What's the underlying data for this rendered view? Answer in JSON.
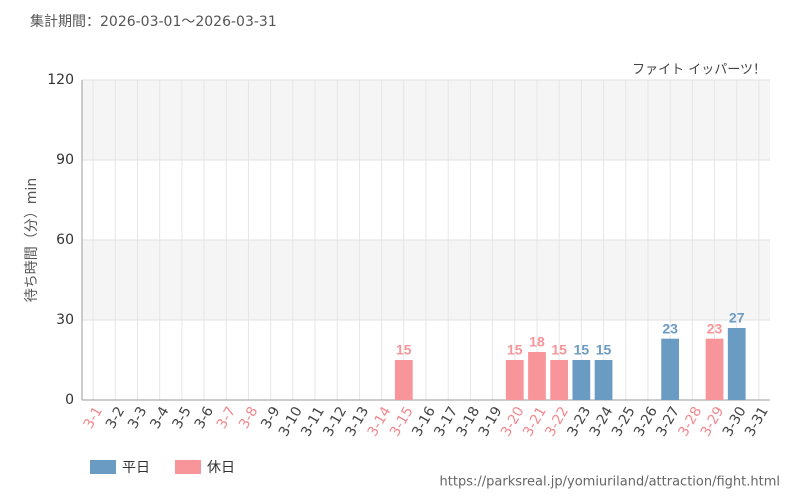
{
  "chart_data": {
    "type": "bar",
    "subtitle": "集計期間：2026-03-01～2026-03-31",
    "annotation": "ファイト イッパーツ！",
    "y_label": "待ち時間（分）min",
    "source": "https://parksreal.jp/yomiuriland/attraction/fight.html",
    "categories": [
      "3-1",
      "3-2",
      "3-3",
      "3-4",
      "3-5",
      "3-6",
      "3-7",
      "3-8",
      "3-9",
      "3-10",
      "3-11",
      "3-12",
      "3-13",
      "3-14",
      "3-15",
      "3-16",
      "3-17",
      "3-18",
      "3-19",
      "3-20",
      "3-21",
      "3-22",
      "3-23",
      "3-24",
      "3-25",
      "3-26",
      "3-27",
      "3-28",
      "3-29",
      "3-30",
      "3-31"
    ],
    "category_label_colors": [
      "#f08a8f",
      "#444",
      "#444",
      "#444",
      "#444",
      "#444",
      "#f08a8f",
      "#f08a8f",
      "#444",
      "#444",
      "#444",
      "#444",
      "#444",
      "#f08a8f",
      "#f08a8f",
      "#444",
      "#444",
      "#444",
      "#444",
      "#f08a8f",
      "#f08a8f",
      "#f08a8f",
      "#444",
      "#444",
      "#444",
      "#444",
      "#444",
      "#f08a8f",
      "#f08a8f",
      "#444",
      "#444"
    ],
    "series": [
      {
        "name": "平日",
        "color": "#6a9bc3",
        "values": [
          null,
          null,
          null,
          null,
          null,
          null,
          null,
          null,
          null,
          null,
          null,
          null,
          null,
          null,
          null,
          null,
          null,
          null,
          null,
          null,
          null,
          null,
          15,
          15,
          null,
          null,
          23,
          null,
          null,
          27,
          null
        ]
      },
      {
        "name": "休日",
        "color": "#f7959a",
        "values": [
          null,
          null,
          null,
          null,
          null,
          null,
          null,
          null,
          null,
          null,
          null,
          null,
          null,
          null,
          15,
          null,
          null,
          null,
          null,
          15,
          18,
          15,
          null,
          null,
          null,
          null,
          null,
          null,
          23,
          null,
          null
        ]
      }
    ],
    "ylim": [
      0,
      120
    ],
    "yticks": [
      0,
      30,
      60,
      90,
      120
    ],
    "grid": true
  }
}
